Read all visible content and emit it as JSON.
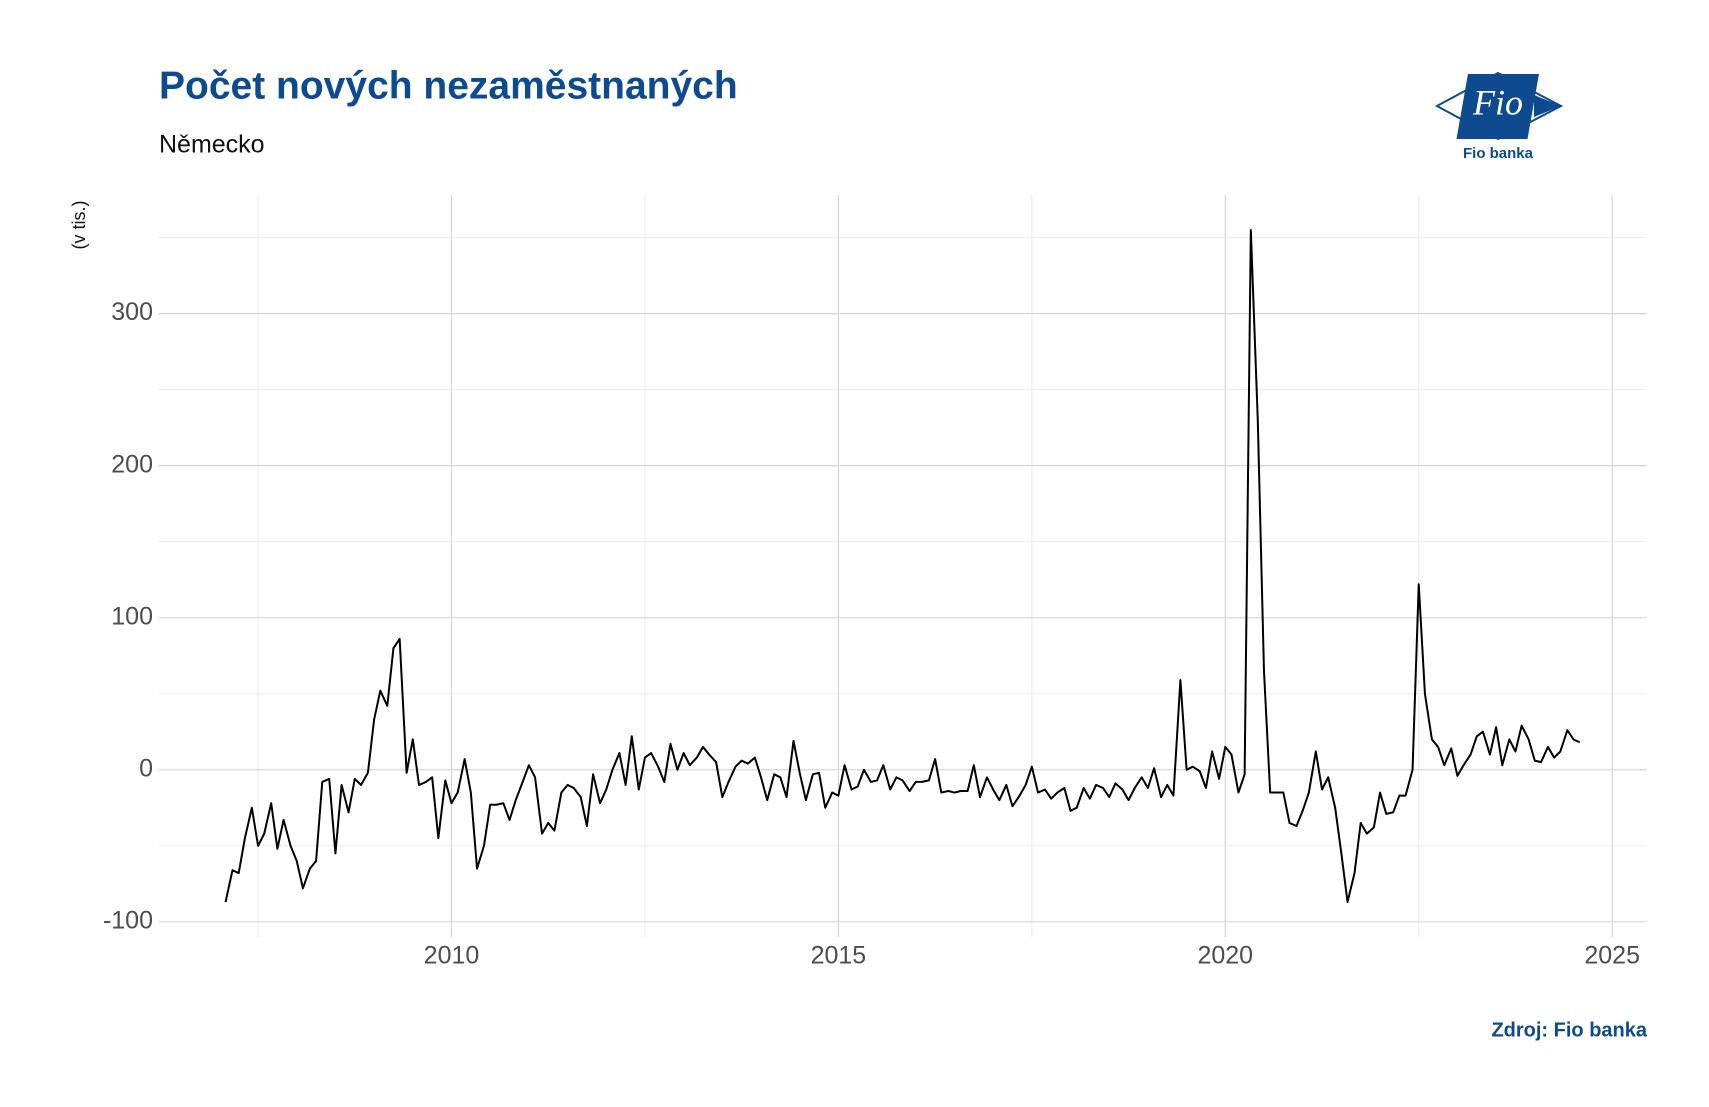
{
  "chart_data": {
    "type": "line",
    "title": "Počet nových nezaměstnaných",
    "subtitle": "Německo",
    "y_label": "(v tis.)",
    "source": "Zdroj: Fio banka",
    "color": "#000000",
    "grid": true,
    "xlim": [
      2006.22,
      2025.45
    ],
    "xticks": [
      2010,
      2015,
      2020,
      2025
    ],
    "ylim": [
      -110,
      378
    ],
    "yticks": [
      -100,
      0,
      100,
      200,
      300
    ],
    "x": [
      2007.08,
      2007.17,
      2007.25,
      2007.33,
      2007.42,
      2007.5,
      2007.58,
      2007.67,
      2007.75,
      2007.83,
      2007.92,
      2008.0,
      2008.08,
      2008.17,
      2008.25,
      2008.33,
      2008.42,
      2008.5,
      2008.58,
      2008.67,
      2008.75,
      2008.83,
      2008.92,
      2009.0,
      2009.08,
      2009.17,
      2009.25,
      2009.33,
      2009.42,
      2009.5,
      2009.58,
      2009.67,
      2009.75,
      2009.83,
      2009.92,
      2010.0,
      2010.08,
      2010.17,
      2010.25,
      2010.33,
      2010.42,
      2010.5,
      2010.58,
      2010.67,
      2010.75,
      2010.83,
      2010.92,
      2011.0,
      2011.08,
      2011.17,
      2011.25,
      2011.33,
      2011.42,
      2011.5,
      2011.58,
      2011.67,
      2011.75,
      2011.83,
      2011.92,
      2012.0,
      2012.08,
      2012.17,
      2012.25,
      2012.33,
      2012.42,
      2012.5,
      2012.58,
      2012.67,
      2012.75,
      2012.83,
      2012.92,
      2013.0,
      2013.08,
      2013.17,
      2013.25,
      2013.33,
      2013.42,
      2013.5,
      2013.58,
      2013.67,
      2013.75,
      2013.83,
      2013.92,
      2014.0,
      2014.08,
      2014.17,
      2014.25,
      2014.33,
      2014.42,
      2014.5,
      2014.58,
      2014.67,
      2014.75,
      2014.83,
      2014.92,
      2015.0,
      2015.08,
      2015.17,
      2015.25,
      2015.33,
      2015.42,
      2015.5,
      2015.58,
      2015.67,
      2015.75,
      2015.83,
      2015.92,
      2016.0,
      2016.08,
      2016.17,
      2016.25,
      2016.33,
      2016.42,
      2016.5,
      2016.58,
      2016.67,
      2016.75,
      2016.83,
      2016.92,
      2017.0,
      2017.08,
      2017.17,
      2017.25,
      2017.33,
      2017.42,
      2017.5,
      2017.58,
      2017.67,
      2017.75,
      2017.83,
      2017.92,
      2018.0,
      2018.08,
      2018.17,
      2018.25,
      2018.33,
      2018.42,
      2018.5,
      2018.58,
      2018.67,
      2018.75,
      2018.83,
      2018.92,
      2019.0,
      2019.08,
      2019.17,
      2019.25,
      2019.33,
      2019.42,
      2019.5,
      2019.58,
      2019.67,
      2019.75,
      2019.83,
      2019.92,
      2020.0,
      2020.08,
      2020.17,
      2020.25,
      2020.33,
      2020.42,
      2020.5,
      2020.58,
      2020.67,
      2020.75,
      2020.83,
      2020.92,
      2021.0,
      2021.08,
      2021.17,
      2021.25,
      2021.33,
      2021.42,
      2021.5,
      2021.58,
      2021.67,
      2021.75,
      2021.83,
      2021.92,
      2022.0,
      2022.08,
      2022.17,
      2022.25,
      2022.33,
      2022.42,
      2022.5,
      2022.58,
      2022.67,
      2022.75,
      2022.83,
      2022.92,
      2023.0,
      2023.08,
      2023.17,
      2023.25,
      2023.33,
      2023.42,
      2023.5,
      2023.58,
      2023.67,
      2023.75,
      2023.83,
      2023.92,
      2024.0,
      2024.08,
      2024.17,
      2024.25,
      2024.33,
      2024.42,
      2024.5,
      2024.58
    ],
    "values": [
      -87,
      -66,
      -68,
      -45,
      -25,
      -50,
      -42,
      -22,
      -52,
      -33,
      -50,
      -60,
      -78,
      -65,
      -60,
      -8,
      -6,
      -55,
      -10,
      -28,
      -6,
      -10,
      -2,
      33,
      52,
      42,
      80,
      86,
      -2,
      20,
      -10,
      -8,
      -5,
      -45,
      -7,
      -22,
      -15,
      7,
      -15,
      -65,
      -50,
      -23,
      -23,
      -22,
      -33,
      -20,
      -8,
      3,
      -5,
      -42,
      -35,
      -40,
      -15,
      -10,
      -12,
      -18,
      -37,
      -3,
      -22,
      -13,
      0,
      11,
      -10,
      22,
      -13,
      8,
      11,
      2,
      -8,
      17,
      0,
      11,
      3,
      8,
      15,
      10,
      5,
      -18,
      -8,
      2,
      6,
      4,
      8,
      -5,
      -20,
      -3,
      -5,
      -18,
      19,
      -2,
      -20,
      -3,
      -2,
      -25,
      -15,
      -17,
      3,
      -13,
      -11,
      0,
      -8,
      -7,
      3,
      -13,
      -5,
      -7,
      -14,
      -8,
      -8,
      -7,
      7,
      -15,
      -14,
      -15,
      -14,
      -14,
      3,
      -18,
      -5,
      -13,
      -20,
      -10,
      -24,
      -18,
      -10,
      2,
      -15,
      -13,
      -19,
      -15,
      -12,
      -27,
      -25,
      -12,
      -19,
      -10,
      -12,
      -18,
      -9,
      -13,
      -20,
      -12,
      -5,
      -12,
      1,
      -18,
      -10,
      -17,
      59,
      0,
      2,
      -1,
      -12,
      12,
      -6,
      15,
      10,
      -15,
      -3,
      355,
      230,
      65,
      -15,
      -15,
      -15,
      -35,
      -37,
      -27,
      -15,
      12,
      -13,
      -5,
      -25,
      -55,
      -87,
      -68,
      -35,
      -42,
      -38,
      -15,
      -29,
      -28,
      -17,
      -17,
      0,
      122,
      50,
      20,
      15,
      3,
      14,
      -4,
      3,
      10,
      22,
      25,
      10,
      28,
      3,
      20,
      12,
      29,
      20,
      6,
      5,
      15,
      8,
      12,
      26,
      20,
      18
    ]
  },
  "logo": {
    "mark": "Fio",
    "name": "Fio banka"
  }
}
